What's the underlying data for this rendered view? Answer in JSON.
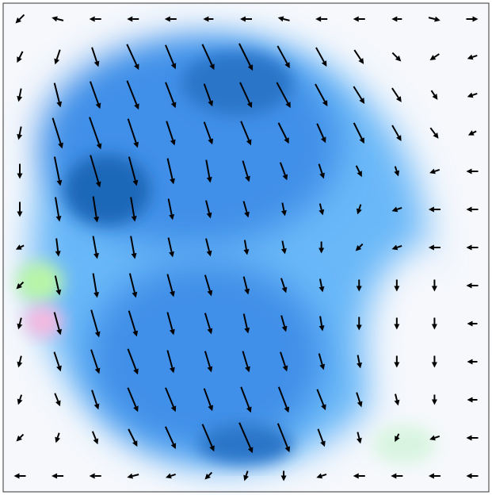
{
  "chart_data": {
    "type": "quiver",
    "color": "#000000",
    "vectors": [
      [
        [
          -0.3,
          0.3
        ],
        [
          -0.4,
          -0.1
        ],
        [
          -0.4,
          0
        ],
        [
          -0.4,
          0
        ],
        [
          -0.4,
          0
        ],
        [
          -0.3,
          0
        ],
        [
          -0.4,
          0
        ],
        [
          -0.4,
          -0.1
        ],
        [
          -0.4,
          0
        ],
        [
          -0.4,
          0
        ],
        [
          -0.3,
          0
        ],
        [
          0.4,
          0.1
        ],
        [
          0.4,
          0
        ]
      ],
      [
        [
          -0.2,
          0.4
        ],
        [
          -0.2,
          0.6
        ],
        [
          0.3,
          0.9
        ],
        [
          0.6,
          1.3
        ],
        [
          0.5,
          1.2
        ],
        [
          0.6,
          1.3
        ],
        [
          0.7,
          1.4
        ],
        [
          0.6,
          1.1
        ],
        [
          0.5,
          0.9
        ],
        [
          0.4,
          0.6
        ],
        [
          0.3,
          0.3
        ],
        [
          -0.3,
          0.2
        ],
        [
          -0.3,
          0.1
        ]
      ],
      [
        [
          -0.1,
          0.5
        ],
        [
          0.3,
          1.2
        ],
        [
          0.5,
          1.4
        ],
        [
          0.6,
          1.5
        ],
        [
          0.5,
          1.3
        ],
        [
          0.4,
          1.1
        ],
        [
          0.6,
          1.3
        ],
        [
          0.7,
          1.3
        ],
        [
          0.6,
          1.1
        ],
        [
          0.5,
          0.8
        ],
        [
          0.4,
          0.6
        ],
        [
          0.2,
          0.3
        ],
        [
          -0.3,
          0.1
        ]
      ],
      [
        [
          -0.1,
          0.5
        ],
        [
          0.5,
          1.6
        ],
        [
          0.6,
          1.7
        ],
        [
          0.5,
          1.5
        ],
        [
          0.4,
          1.2
        ],
        [
          0.4,
          1.1
        ],
        [
          0.5,
          1.2
        ],
        [
          0.5,
          1.0
        ],
        [
          0.4,
          0.9
        ],
        [
          0.5,
          1.0
        ],
        [
          0.4,
          0.7
        ],
        [
          0.3,
          0.4
        ],
        [
          -0.2,
          0.1
        ]
      ],
      [
        [
          0,
          0.6
        ],
        [
          0.3,
          1.5
        ],
        [
          0.5,
          1.7
        ],
        [
          0.4,
          1.5
        ],
        [
          0.3,
          1.3
        ],
        [
          0.2,
          1.1
        ],
        [
          0.3,
          1.0
        ],
        [
          0.3,
          0.8
        ],
        [
          0.2,
          0.6
        ],
        [
          0.2,
          0.4
        ],
        [
          0.1,
          0.3
        ],
        [
          -0.3,
          0.1
        ],
        [
          -0.4,
          0
        ]
      ],
      [
        [
          0,
          0.6
        ],
        [
          0.2,
          1.2
        ],
        [
          0.2,
          1.3
        ],
        [
          0.2,
          1.2
        ],
        [
          0.2,
          1.0
        ],
        [
          0.2,
          0.8
        ],
        [
          0.2,
          0.7
        ],
        [
          0.1,
          0.5
        ],
        [
          0.1,
          0.4
        ],
        [
          -0.1,
          0.3
        ],
        [
          -0.3,
          0.1
        ],
        [
          -0.4,
          0
        ],
        [
          -0.4,
          0
        ]
      ],
      [
        [
          -0.2,
          0.1
        ],
        [
          0.1,
          0.8
        ],
        [
          0.2,
          1.1
        ],
        [
          0.2,
          1.1
        ],
        [
          0.2,
          0.9
        ],
        [
          0.2,
          0.8
        ],
        [
          0.1,
          0.6
        ],
        [
          0.1,
          0.5
        ],
        [
          0,
          0.4
        ],
        [
          -0.2,
          0.2
        ],
        [
          -0.3,
          0.1
        ],
        [
          -0.4,
          0
        ],
        [
          -0.4,
          0
        ]
      ],
      [
        [
          -0.2,
          0.2
        ],
        [
          0.2,
          0.9
        ],
        [
          0.2,
          1.2
        ],
        [
          0.3,
          1.2
        ],
        [
          0.3,
          1.1
        ],
        [
          0.3,
          1.0
        ],
        [
          0.2,
          0.8
        ],
        [
          0.2,
          0.6
        ],
        [
          0.1,
          0.5
        ],
        [
          0,
          0.4
        ],
        [
          0,
          0.4
        ],
        [
          0,
          0.4
        ],
        [
          -0.4,
          0
        ]
      ],
      [
        [
          -0.1,
          0.4
        ],
        [
          0.3,
          1.1
        ],
        [
          0.4,
          1.4
        ],
        [
          0.4,
          1.3
        ],
        [
          0.3,
          1.1
        ],
        [
          0.3,
          1.0
        ],
        [
          0.2,
          0.9
        ],
        [
          0.2,
          0.7
        ],
        [
          0.1,
          0.6
        ],
        [
          0,
          0.5
        ],
        [
          0,
          0.4
        ],
        [
          0,
          0.4
        ],
        [
          -0.3,
          0
        ]
      ],
      [
        [
          -0.1,
          0.4
        ],
        [
          0.3,
          0.9
        ],
        [
          0.4,
          1.2
        ],
        [
          0.5,
          1.3
        ],
        [
          0.3,
          1.1
        ],
        [
          0.3,
          1.0
        ],
        [
          0.3,
          1.0
        ],
        [
          0.3,
          0.9
        ],
        [
          0.2,
          0.7
        ],
        [
          0.1,
          0.5
        ],
        [
          0,
          0.4
        ],
        [
          0,
          0.4
        ],
        [
          -0.3,
          0
        ]
      ],
      [
        [
          -0.1,
          0.3
        ],
        [
          0.2,
          0.5
        ],
        [
          0.3,
          0.9
        ],
        [
          0.5,
          1.2
        ],
        [
          0.5,
          1.2
        ],
        [
          0.4,
          1.1
        ],
        [
          0.5,
          1.3
        ],
        [
          0.5,
          1.3
        ],
        [
          0.4,
          1.0
        ],
        [
          0.2,
          0.6
        ],
        [
          0.1,
          0.4
        ],
        [
          0,
          0.3
        ],
        [
          -0.3,
          0
        ]
      ],
      [
        [
          -0.2,
          0.2
        ],
        [
          -0.1,
          0.3
        ],
        [
          0.2,
          0.5
        ],
        [
          0.4,
          0.8
        ],
        [
          0.5,
          1.1
        ],
        [
          0.6,
          1.4
        ],
        [
          0.7,
          1.6
        ],
        [
          0.6,
          1.5
        ],
        [
          0.3,
          0.8
        ],
        [
          0.1,
          0.4
        ],
        [
          -0.1,
          0.2
        ],
        [
          -0.3,
          0.1
        ],
        [
          -0.4,
          0
        ]
      ],
      [
        [
          -0.4,
          0
        ],
        [
          -0.4,
          0
        ],
        [
          -0.4,
          0
        ],
        [
          -0.4,
          0.1
        ],
        [
          -0.3,
          0.1
        ],
        [
          -0.2,
          0.2
        ],
        [
          -0.1,
          0.3
        ],
        [
          0,
          0.3
        ],
        [
          -0.3,
          0.1
        ],
        [
          -0.4,
          0
        ],
        [
          -0.4,
          0
        ],
        [
          -0.4,
          0
        ],
        [
          -0.4,
          0
        ]
      ]
    ]
  }
}
